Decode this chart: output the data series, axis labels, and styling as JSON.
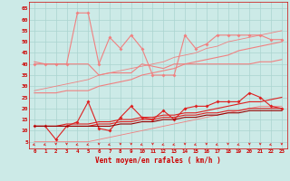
{
  "background_color": "#cceae7",
  "grid_color": "#aad4d0",
  "x_labels": [
    0,
    1,
    2,
    3,
    4,
    5,
    6,
    7,
    8,
    9,
    10,
    11,
    12,
    13,
    14,
    15,
    16,
    17,
    18,
    19,
    20,
    21,
    22,
    23
  ],
  "xlabel": "Vent moyen/en rafales ( km/h )",
  "ylim": [
    2,
    68
  ],
  "yticks": [
    5,
    10,
    15,
    20,
    25,
    30,
    35,
    40,
    45,
    50,
    55,
    60,
    65
  ],
  "line_light_pink": {
    "y": [
      40,
      40,
      40,
      40,
      63,
      63,
      40,
      52,
      47,
      53,
      47,
      35,
      35,
      35,
      53,
      47,
      49,
      53,
      53,
      53,
      53,
      53,
      51,
      51
    ],
    "color": "#f08080",
    "lw": 0.8,
    "ms": 2.0
  },
  "line_pink_flat": {
    "y": [
      41,
      40,
      40,
      40,
      40,
      40,
      35,
      36,
      36,
      36,
      40,
      39,
      38,
      40,
      40,
      40,
      40,
      40,
      40,
      40,
      40,
      41,
      41,
      42
    ],
    "color": "#f08080",
    "lw": 0.8
  },
  "line_pink_rising": {
    "y": [
      27,
      27,
      27,
      28,
      28,
      28,
      30,
      31,
      32,
      33,
      35,
      36,
      37,
      38,
      40,
      41,
      42,
      43,
      44,
      46,
      47,
      48,
      49,
      50
    ],
    "color": "#f08080",
    "lw": 0.8
  },
  "line_pink_rising2": {
    "y": [
      28,
      29,
      30,
      31,
      32,
      33,
      35,
      36,
      37,
      38,
      39,
      40,
      41,
      43,
      44,
      45,
      47,
      48,
      50,
      51,
      52,
      53,
      54,
      55
    ],
    "color": "#f08080",
    "lw": 0.6
  },
  "line_pink_base": {
    "y": [
      5,
      5,
      5,
      5,
      5,
      5,
      6,
      7,
      8,
      9,
      10,
      11,
      12,
      13,
      14,
      15,
      16,
      17,
      18,
      19,
      20,
      21,
      21,
      21
    ],
    "color": "#f08080",
    "lw": 0.6
  },
  "line_red_volatile": {
    "y": [
      12,
      12,
      6,
      12,
      14,
      23,
      11,
      10,
      16,
      21,
      16,
      15,
      19,
      15,
      20,
      21,
      21,
      23,
      23,
      23,
      27,
      25,
      21,
      20
    ],
    "color": "#dd2020",
    "lw": 0.8,
    "ms": 2.0
  },
  "line_red_flat": {
    "y": [
      12,
      12,
      12,
      12,
      12,
      12,
      13,
      13,
      14,
      14,
      15,
      15,
      16,
      16,
      17,
      17,
      18,
      18,
      19,
      19,
      20,
      20,
      20,
      20
    ],
    "color": "#dd2020",
    "lw": 0.8
  },
  "line_red_rising": {
    "y": [
      12,
      12,
      12,
      13,
      13,
      13,
      14,
      14,
      15,
      15,
      16,
      16,
      17,
      17,
      18,
      18,
      19,
      20,
      21,
      22,
      23,
      23,
      24,
      25
    ],
    "color": "#dd2020",
    "lw": 0.8
  },
  "line_dark_red": {
    "y": [
      12,
      12,
      12,
      12,
      12,
      12,
      12,
      12,
      13,
      13,
      14,
      14,
      15,
      15,
      16,
      16,
      17,
      17,
      18,
      18,
      19,
      19,
      19,
      19
    ],
    "color": "#990000",
    "lw": 0.8
  },
  "wind_arrows": {
    "x": [
      0,
      1,
      2,
      3,
      4,
      5,
      6,
      7,
      8,
      9,
      10,
      11,
      12,
      13,
      14,
      15,
      16,
      17,
      18,
      19,
      20,
      21,
      22,
      23
    ],
    "angles": [
      225,
      225,
      270,
      270,
      225,
      225,
      270,
      225,
      270,
      270,
      225,
      270,
      225,
      225,
      270,
      225,
      270,
      225,
      270,
      225,
      270,
      270,
      225,
      270
    ],
    "color": "#dd2020"
  }
}
